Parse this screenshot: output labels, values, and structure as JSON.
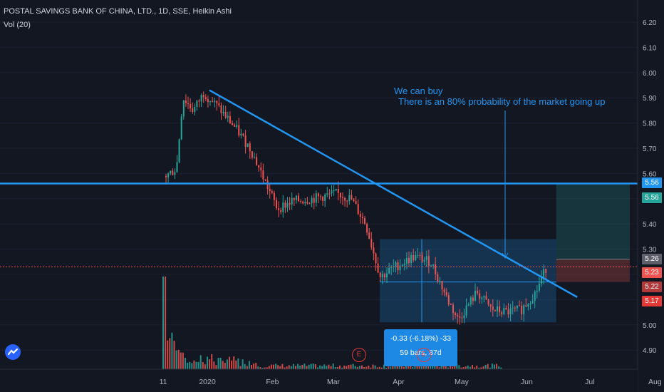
{
  "header": {
    "title": "POSTAL SAVINGS BANK OF CHINA, LTD., 1D, SSE, Heikin Ashi",
    "volume": "Vol (20)"
  },
  "annotations": {
    "line1": "We can buy",
    "line2": "There is an 80% probability of the market going up"
  },
  "measure_tooltip": {
    "line1": "-0.33 (-6.18%) -33",
    "line2": "59 bars, 87d"
  },
  "event_markers": [
    "E",
    "E"
  ],
  "price_badges": [
    {
      "label": "5.56",
      "color": "#2196f3"
    },
    {
      "label": "5.56",
      "color": "#26a69a"
    },
    {
      "label": "5.26",
      "color": "#5d606b"
    },
    {
      "label": "5.23",
      "color": "#ef5350"
    },
    {
      "label": "5.22",
      "color": "#b2393a"
    },
    {
      "label": "5.17",
      "color": "#e53935"
    }
  ],
  "colors": {
    "background": "#131722",
    "up": "#26a69a",
    "down": "#ef5350",
    "trendline": "#2196f3"
  },
  "chart_data": {
    "type": "candlestick",
    "title": "POSTAL SAVINGS BANK OF CHINA, LTD., 1D, SSE, Heikin Ashi",
    "y_axis": {
      "min": 4.82,
      "max": 6.24,
      "ticks": [
        4.9,
        5.0,
        5.1,
        5.2,
        5.3,
        5.4,
        5.5,
        5.6,
        5.7,
        5.8,
        5.9,
        6.0,
        6.1,
        6.2
      ]
    },
    "x_ticks": [
      "11",
      "2020",
      "Feb",
      "Mar",
      "Apr",
      "May",
      "Jun",
      "Jul",
      "Aug"
    ],
    "horizontal_line": 5.56,
    "trendline": {
      "from": {
        "x": "2020-01-02",
        "y": 5.93
      },
      "to": {
        "x": "2020-06-25",
        "y": 5.11
      }
    },
    "range_box": {
      "x_start": "2020-03-23",
      "x_end": "2020-06-15",
      "y_low": 5.01,
      "y_high": 5.34
    },
    "position": {
      "entry": 5.26,
      "stop": 5.17,
      "target": 5.56,
      "x_start": "2020-06-15",
      "x_end": "2020-07-20"
    },
    "last_price": 5.23,
    "price_series": [
      {
        "x": "2019-12-12",
        "v": 5.59
      },
      {
        "x": "2019-12-17",
        "v": 5.62
      },
      {
        "x": "2019-12-20",
        "v": 5.9
      },
      {
        "x": "2019-12-25",
        "v": 5.85
      },
      {
        "x": "2019-12-30",
        "v": 5.92
      },
      {
        "x": "2020-01-06",
        "v": 5.86
      },
      {
        "x": "2020-01-14",
        "v": 5.78
      },
      {
        "x": "2020-01-21",
        "v": 5.7
      },
      {
        "x": "2020-02-03",
        "v": 5.46
      },
      {
        "x": "2020-02-10",
        "v": 5.49
      },
      {
        "x": "2020-02-20",
        "v": 5.5
      },
      {
        "x": "2020-03-02",
        "v": 5.52
      },
      {
        "x": "2020-03-09",
        "v": 5.5
      },
      {
        "x": "2020-03-16",
        "v": 5.4
      },
      {
        "x": "2020-03-23",
        "v": 5.19
      },
      {
        "x": "2020-03-30",
        "v": 5.23
      },
      {
        "x": "2020-04-08",
        "v": 5.27
      },
      {
        "x": "2020-04-16",
        "v": 5.25
      },
      {
        "x": "2020-04-24",
        "v": 5.1
      },
      {
        "x": "2020-04-29",
        "v": 5.02
      },
      {
        "x": "2020-05-08",
        "v": 5.13
      },
      {
        "x": "2020-05-15",
        "v": 5.06
      },
      {
        "x": "2020-05-22",
        "v": 5.05
      },
      {
        "x": "2020-05-29",
        "v": 5.06
      },
      {
        "x": "2020-06-05",
        "v": 5.13
      },
      {
        "x": "2020-06-10",
        "v": 5.23
      }
    ]
  }
}
